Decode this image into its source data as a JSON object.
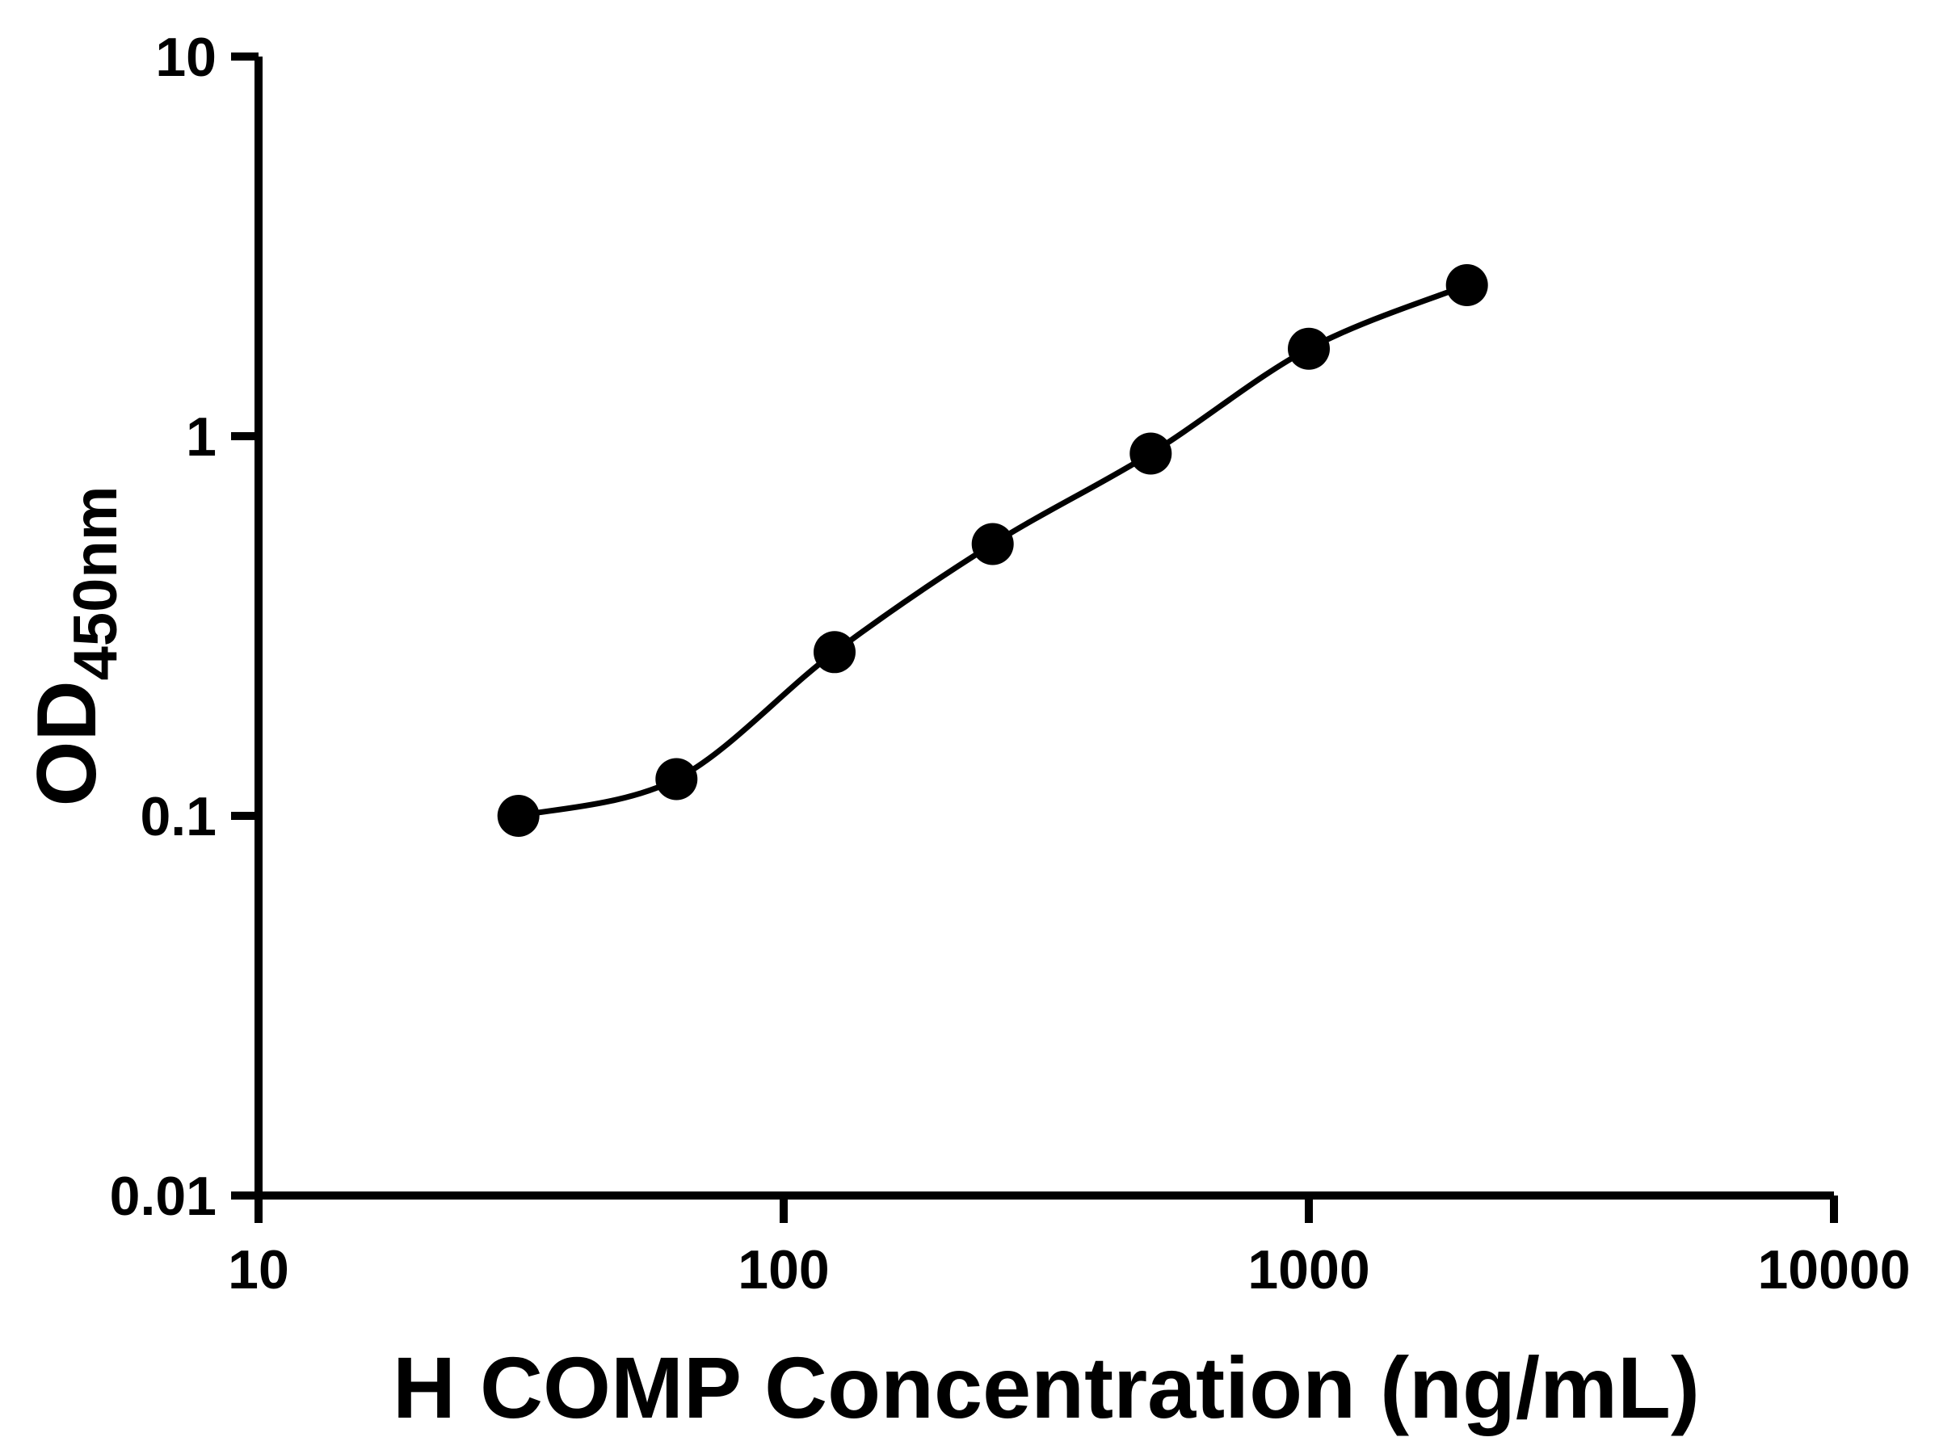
{
  "figure": {
    "background": "#ffffff"
  },
  "chart_data": {
    "type": "scatter",
    "title": "",
    "xlabel": "H COMP Concentration (ng/mL)",
    "ylabel": "OD",
    "ylabel_subscript": "450nm",
    "x_scale": "log",
    "y_scale": "log",
    "xlim": [
      10,
      10000
    ],
    "ylim": [
      0.01,
      10
    ],
    "x": [
      31.25,
      62.5,
      125,
      250,
      500,
      1000,
      2000
    ],
    "y": [
      0.1,
      0.125,
      0.27,
      0.52,
      0.9,
      1.7,
      2.5
    ],
    "x_tick_values": [
      10,
      100,
      1000,
      10000
    ],
    "x_tick_labels": [
      "10",
      "100",
      "1000",
      "10000"
    ],
    "y_tick_values": [
      10,
      1,
      0.1,
      0.01
    ],
    "y_tick_labels": [
      "10",
      "1",
      "0.1",
      "0.01"
    ],
    "grid": false,
    "legend": false,
    "line_style": "smooth-fit-through-points",
    "marker": "filled-circle",
    "marker_color": "#000000",
    "line_color": "#000000",
    "axis_color": "#000000"
  }
}
